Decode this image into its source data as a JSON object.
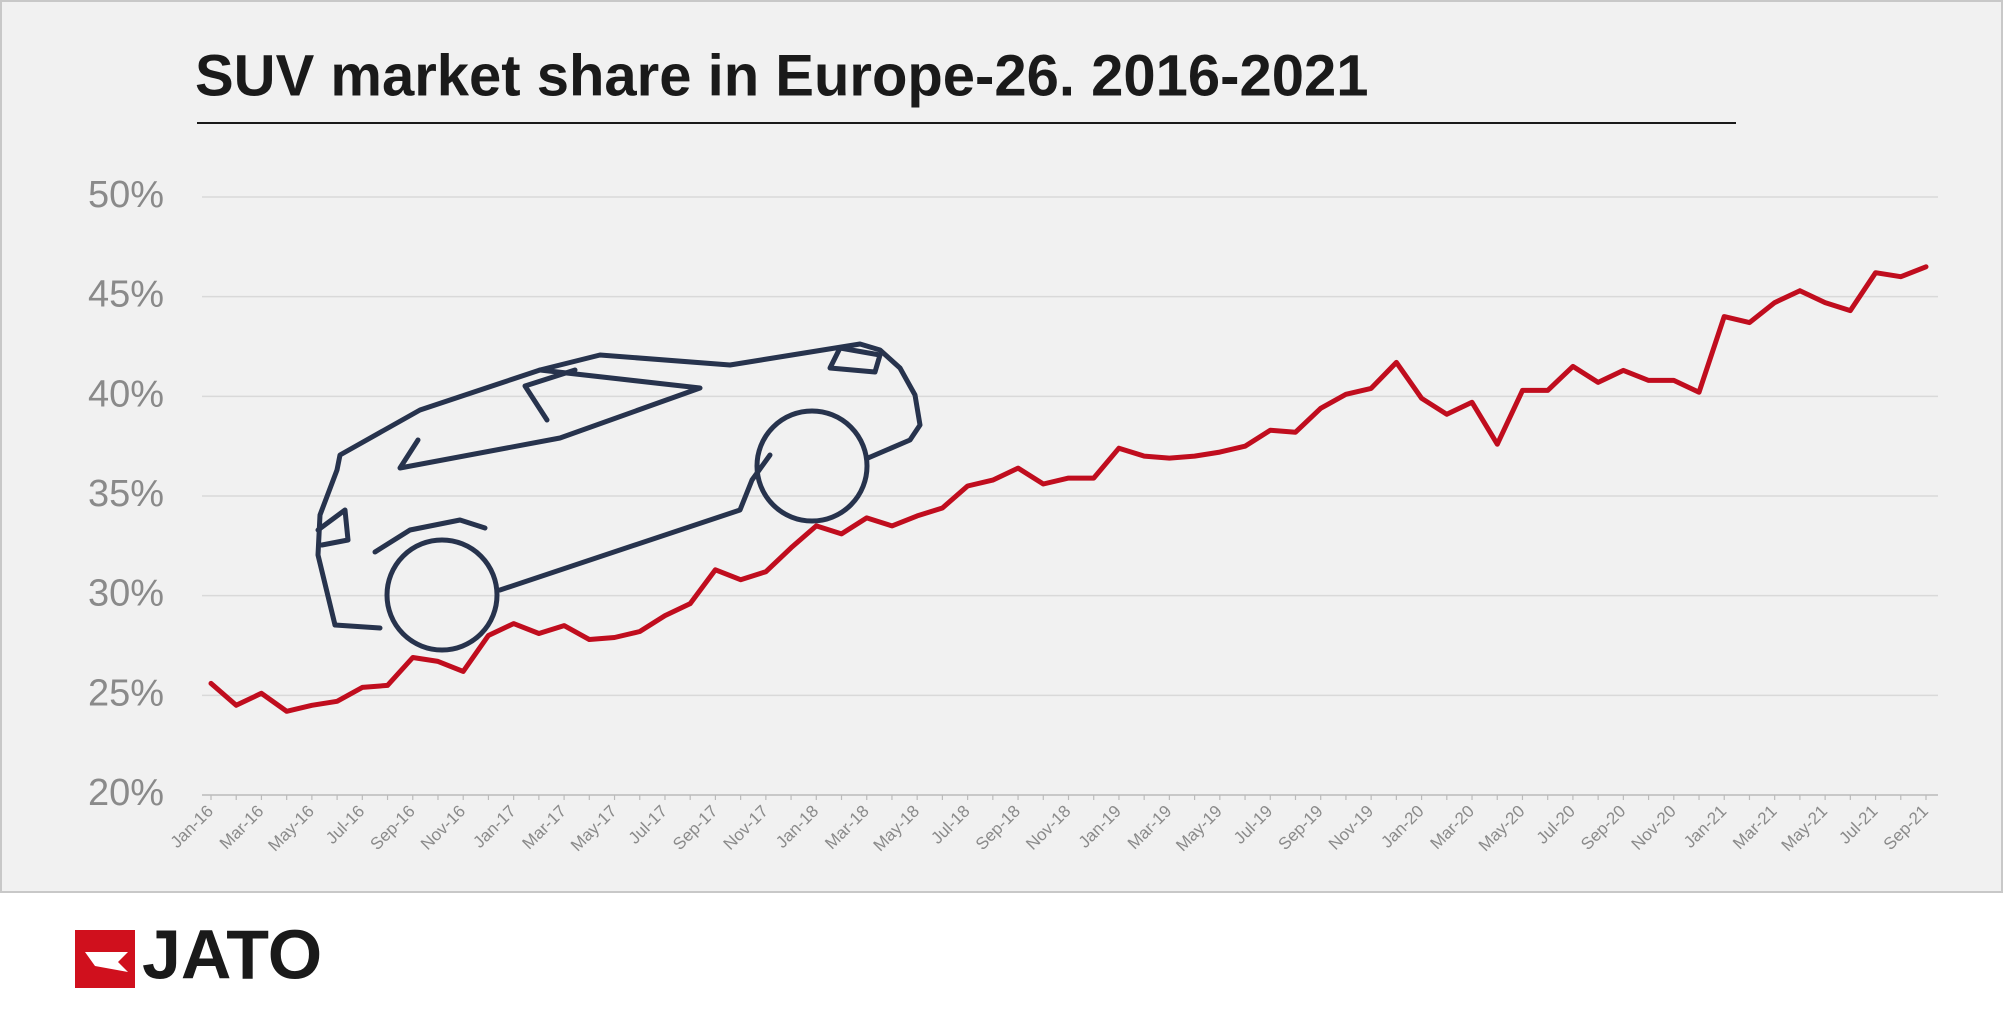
{
  "chart_data": {
    "type": "line",
    "title": "SUV market share in Europe-26. 2016-2021",
    "categories": [
      "Jan-16",
      null,
      "Mar-16",
      null,
      "May-16",
      null,
      "Jul-16",
      null,
      "Sep-16",
      null,
      "Nov-16",
      null,
      "Jan-17",
      null,
      "Mar-17",
      null,
      "May-17",
      null,
      "Jul-17",
      null,
      "Sep-17",
      null,
      "Nov-17",
      null,
      "Jan-18",
      null,
      "Mar-18",
      null,
      "May-18",
      null,
      "Jul-18",
      null,
      "Sep-18",
      null,
      "Nov-18",
      null,
      "Jan-19",
      null,
      "Mar-19",
      null,
      "May-19",
      null,
      "Jul-19",
      null,
      "Sep-19",
      null,
      "Nov-19",
      null,
      "Jan-20",
      null,
      "Mar-20",
      null,
      "May-20",
      null,
      "Jul-20",
      null,
      "Sep-20",
      null,
      "Nov-20",
      null,
      "Jan-21",
      null,
      "Mar-21",
      null,
      "May-21",
      null,
      "Jul-21",
      null,
      "Sep-21"
    ],
    "values": [
      25.6,
      24.5,
      25.1,
      24.2,
      24.5,
      24.7,
      25.4,
      25.5,
      26.9,
      26.7,
      26.2,
      28.0,
      28.6,
      28.1,
      28.5,
      27.8,
      27.9,
      28.2,
      29.0,
      29.6,
      31.3,
      30.8,
      31.2,
      32.4,
      33.5,
      33.1,
      33.9,
      33.5,
      34.0,
      34.4,
      35.5,
      35.8,
      36.4,
      35.6,
      35.9,
      35.9,
      37.4,
      37.0,
      36.9,
      37.0,
      37.2,
      37.5,
      38.3,
      38.2,
      39.4,
      40.1,
      40.4,
      41.7,
      39.9,
      39.1,
      39.7,
      37.6,
      40.3,
      40.3,
      41.5,
      40.7,
      41.3,
      40.8,
      40.8,
      40.2,
      44.0,
      43.7,
      44.7,
      45.3,
      44.7,
      44.3,
      46.2,
      46.0,
      46.5
    ],
    "color": "#c00d1e",
    "ylim": [
      20,
      50
    ],
    "yticks": [
      {
        "value": 20,
        "label": "20%"
      },
      {
        "value": 25,
        "label": "25%"
      },
      {
        "value": 30,
        "label": "30%"
      },
      {
        "value": 35,
        "label": "35%"
      },
      {
        "value": 40,
        "label": "40%"
      },
      {
        "value": 45,
        "label": "45%"
      },
      {
        "value": 50,
        "label": "50%"
      }
    ],
    "grid": true
  },
  "logo": "JATO"
}
